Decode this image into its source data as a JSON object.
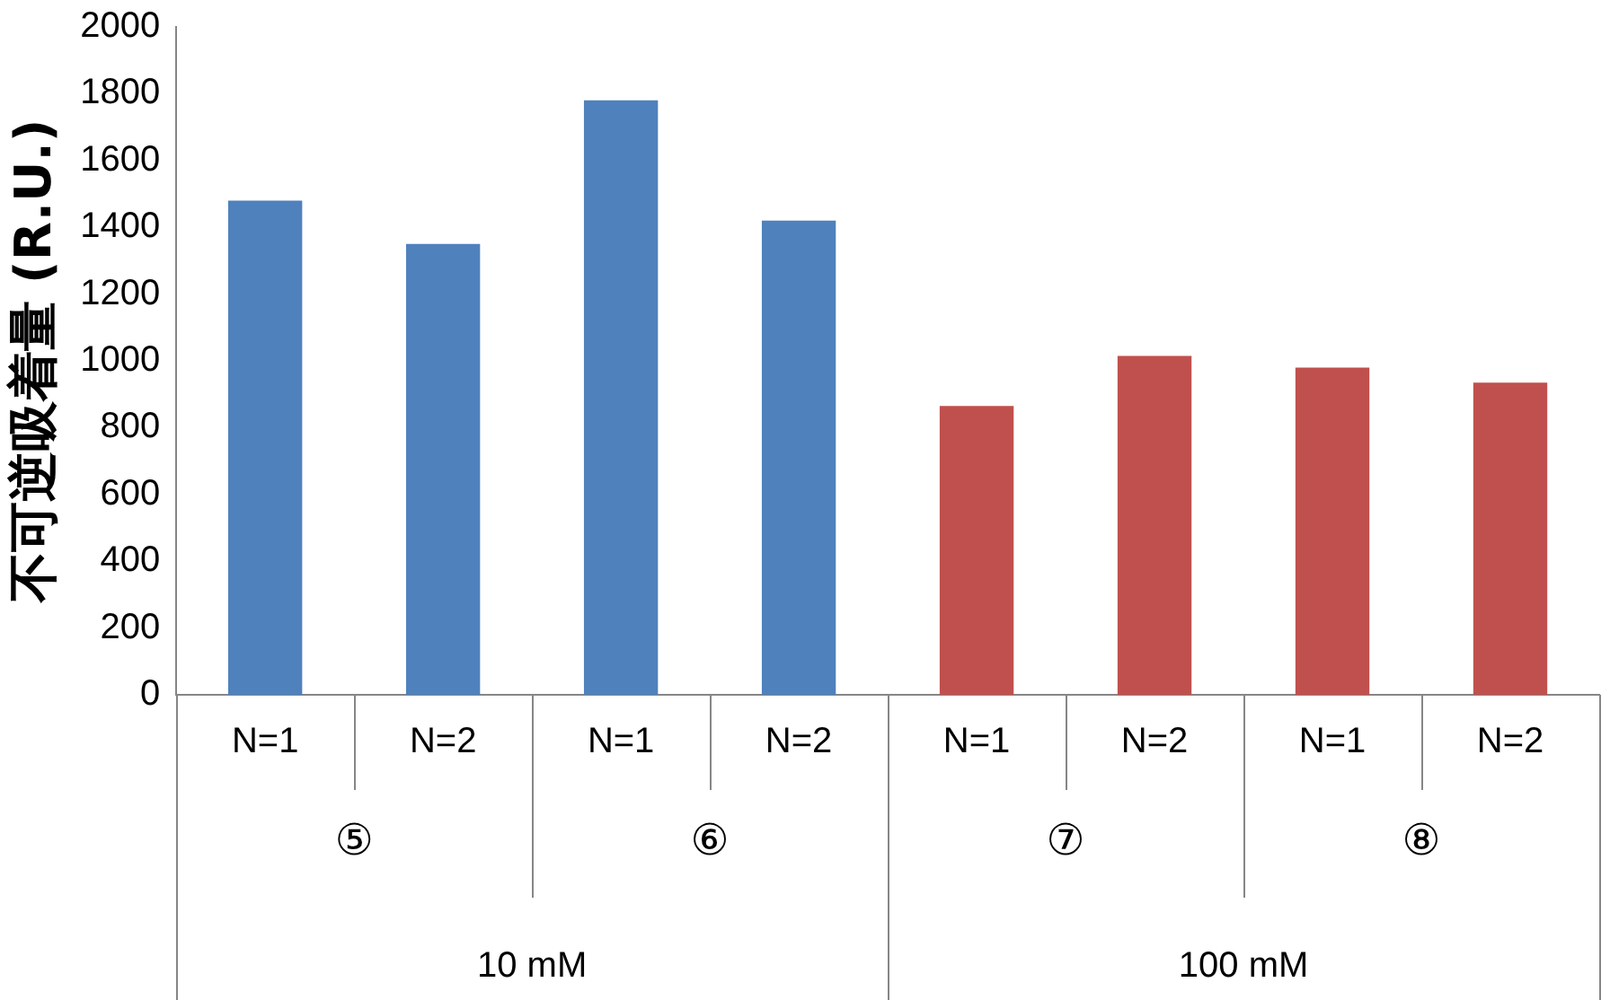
{
  "chart_data": {
    "type": "bar",
    "ylabel": "不可逆吸着量 (R.U.)",
    "categories": [
      "N=1",
      "N=2",
      "N=1",
      "N=2",
      "N=1",
      "N=2",
      "N=1",
      "N=2"
    ],
    "values": [
      1480,
      1350,
      1780,
      1420,
      865,
      1015,
      980,
      935
    ],
    "colors": [
      "#4f81bd",
      "#4f81bd",
      "#4f81bd",
      "#4f81bd",
      "#c0504d",
      "#c0504d",
      "#c0504d",
      "#c0504d"
    ],
    "ylim": [
      0,
      2000
    ],
    "yticks": [
      0,
      200,
      400,
      600,
      800,
      1000,
      1200,
      1400,
      1600,
      1800,
      2000
    ],
    "grid": false,
    "legend": false,
    "annotations": [
      "⑤",
      "⑥",
      "⑦",
      "⑧",
      "10 mM",
      "100 mM"
    ]
  }
}
